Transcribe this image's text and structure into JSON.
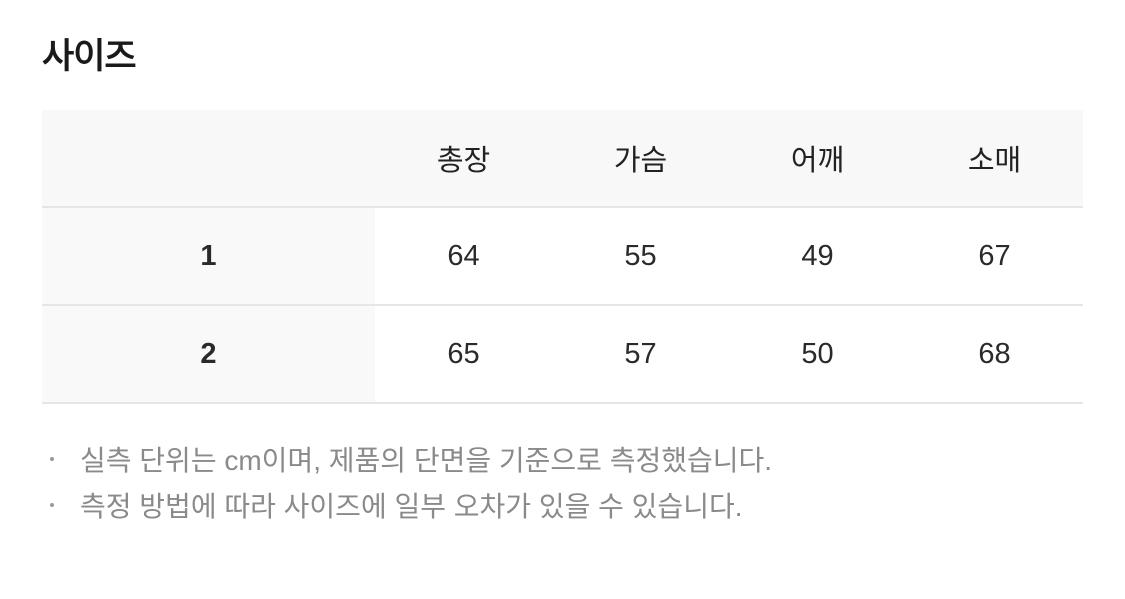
{
  "title": "사이즈",
  "table": {
    "headers": [
      "",
      "총장",
      "가슴",
      "어깨",
      "소매"
    ],
    "rows": [
      {
        "size": "1",
        "values": [
          "64",
          "55",
          "49",
          "67"
        ]
      },
      {
        "size": "2",
        "values": [
          "65",
          "57",
          "50",
          "68"
        ]
      }
    ]
  },
  "notes": [
    "실측 단위는 cm이며, 제품의 단면을 기준으로 측정했습니다.",
    "측정 방법에 따라 사이즈에 일부 오차가 있을 수 있습니다."
  ]
}
